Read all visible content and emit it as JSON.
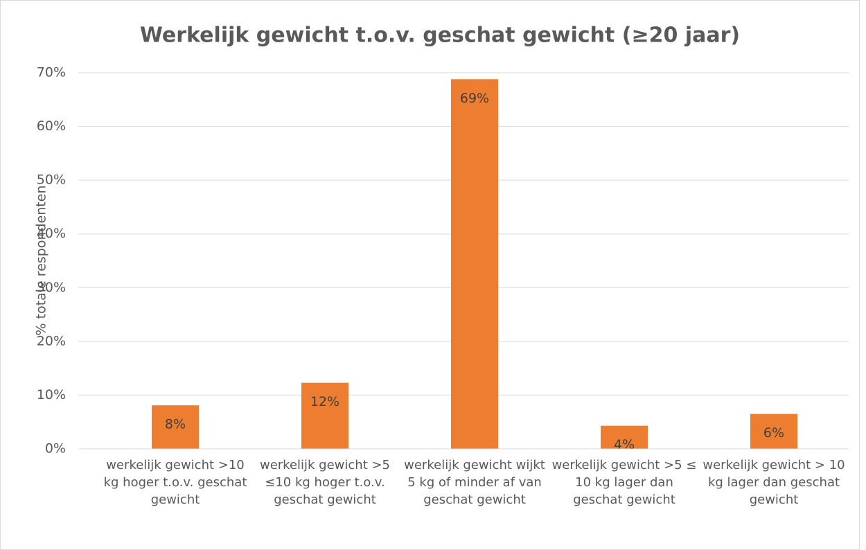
{
  "chart_data": {
    "type": "bar",
    "title": "Werkelijk gewicht t.o.v. geschat gewicht (≥20 jaar)",
    "y_label": "% totale respondenten",
    "categories": [
      "werkelijk gewicht >10 kg hoger t.o.v. geschat gewicht",
      "werkelijk gewicht >5 ≤10 kg hoger t.o.v. geschat gewicht",
      "werkelijk gewicht wijkt 5 kg of minder af van geschat gewicht",
      "werkelijk gewicht >5 ≤ 10 kg lager dan geschat gewicht",
      "werkelijk gewicht > 10 kg lager dan geschat gewicht"
    ],
    "values": [
      8.1,
      12.3,
      68.8,
      4.3,
      6.5
    ],
    "value_labels": [
      "8%",
      "12%",
      "69%",
      "4%",
      "6%"
    ],
    "color": "#ed7d31",
    "ylim": [
      0,
      70
    ],
    "yticks": [
      {
        "value": 0,
        "label": "0%"
      },
      {
        "value": 10,
        "label": "10%"
      },
      {
        "value": 20,
        "label": "20%"
      },
      {
        "value": 30,
        "label": "30%"
      },
      {
        "value": 40,
        "label": "40%"
      },
      {
        "value": 50,
        "label": "50%"
      },
      {
        "value": 60,
        "label": "60%"
      },
      {
        "value": 70,
        "label": "70%"
      }
    ],
    "grid": true
  }
}
